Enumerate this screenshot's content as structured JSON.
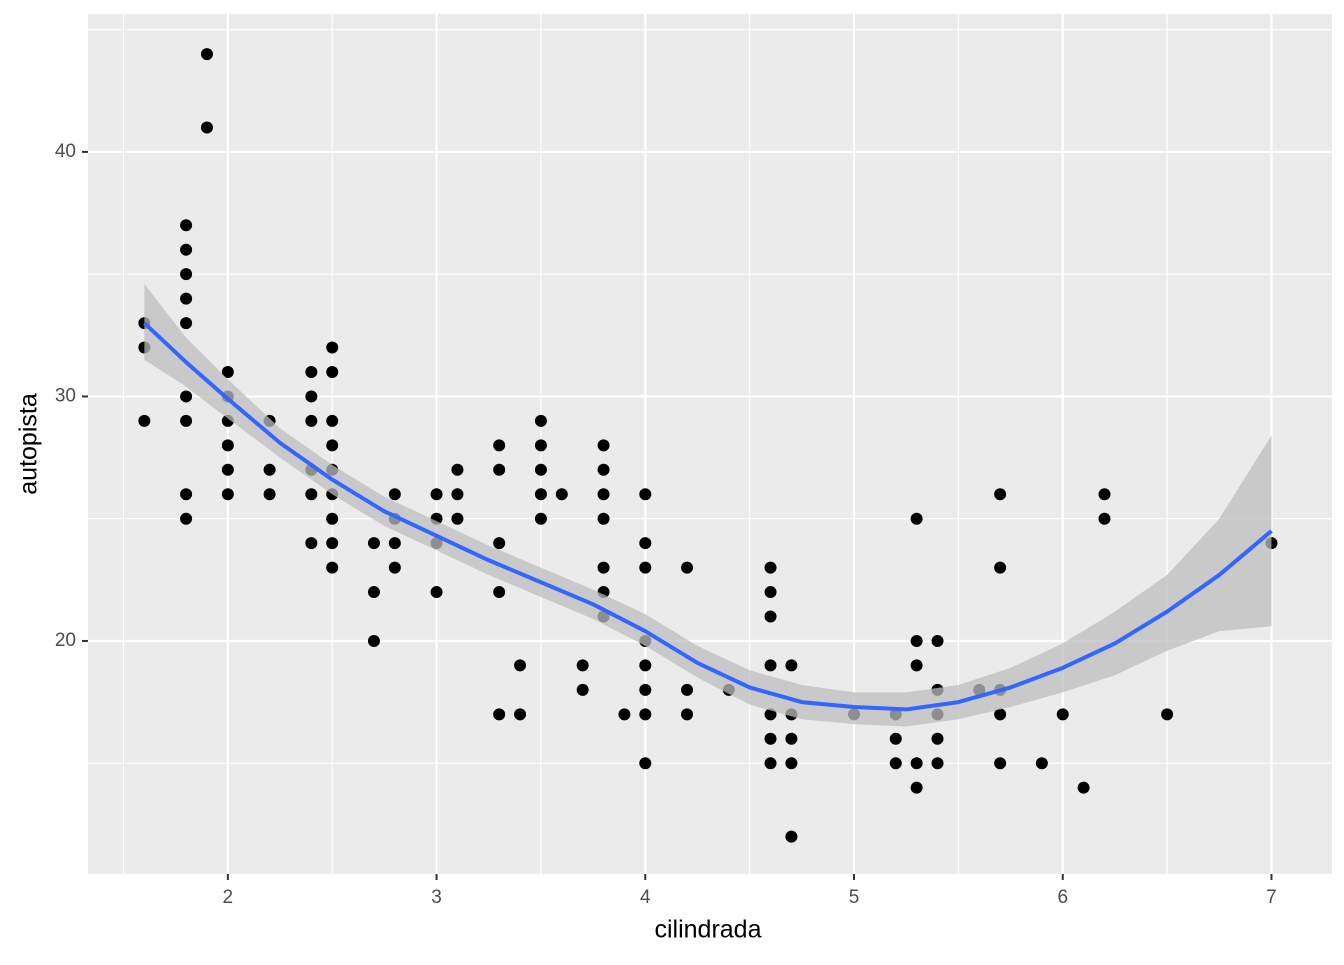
{
  "chart_data": {
    "type": "scatter",
    "x_label": "cilindrada",
    "y_label": "autopista",
    "x": [
      1.6,
      1.6,
      1.6,
      1.8,
      1.8,
      1.8,
      1.8,
      1.8,
      1.8,
      1.8,
      1.8,
      1.8,
      1.9,
      1.9,
      2.0,
      2.0,
      2.0,
      2.0,
      2.0,
      2.0,
      2.2,
      2.2,
      2.2,
      2.4,
      2.4,
      2.4,
      2.4,
      2.4,
      2.4,
      2.5,
      2.5,
      2.5,
      2.5,
      2.5,
      2.5,
      2.5,
      2.5,
      2.5,
      2.7,
      2.7,
      2.7,
      2.8,
      2.8,
      2.8,
      2.8,
      3.0,
      3.0,
      3.0,
      3.0,
      3.1,
      3.1,
      3.1,
      3.3,
      3.3,
      3.3,
      3.3,
      3.3,
      3.4,
      3.4,
      3.5,
      3.5,
      3.5,
      3.5,
      3.5,
      3.6,
      3.7,
      3.7,
      3.8,
      3.8,
      3.8,
      3.8,
      3.8,
      3.8,
      3.8,
      3.9,
      4.0,
      4.0,
      4.0,
      4.0,
      4.0,
      4.0,
      4.0,
      4.0,
      4.2,
      4.2,
      4.2,
      4.4,
      4.6,
      4.6,
      4.6,
      4.6,
      4.6,
      4.6,
      4.6,
      4.7,
      4.7,
      4.7,
      4.7,
      4.7,
      5.0,
      5.2,
      5.2,
      5.2,
      5.3,
      5.3,
      5.3,
      5.3,
      5.3,
      5.4,
      5.4,
      5.4,
      5.4,
      5.4,
      5.6,
      5.7,
      5.7,
      5.7,
      5.7,
      5.7,
      5.9,
      6.0,
      6.1,
      6.2,
      6.2,
      6.5,
      7.0
    ],
    "values": [
      33,
      32,
      29,
      37,
      36,
      35,
      34,
      33,
      30,
      29,
      26,
      25,
      44,
      41,
      31,
      30,
      29,
      28,
      27,
      26,
      29,
      27,
      26,
      31,
      30,
      29,
      27,
      26,
      24,
      32,
      31,
      29,
      28,
      27,
      26,
      25,
      24,
      23,
      24,
      22,
      20,
      26,
      25,
      24,
      23,
      26,
      25,
      24,
      22,
      27,
      26,
      25,
      28,
      27,
      24,
      22,
      17,
      19,
      17,
      29,
      28,
      27,
      26,
      25,
      26,
      19,
      18,
      28,
      27,
      26,
      25,
      23,
      22,
      21,
      17,
      26,
      24,
      23,
      20,
      19,
      18,
      17,
      15,
      23,
      18,
      17,
      18,
      23,
      22,
      21,
      19,
      17,
      16,
      15,
      19,
      17,
      16,
      15,
      12,
      17,
      17,
      16,
      15,
      25,
      20,
      19,
      15,
      14,
      20,
      18,
      17,
      16,
      15,
      18,
      26,
      23,
      18,
      17,
      15,
      15,
      17,
      14,
      26,
      25,
      17,
      24
    ],
    "color": "#000000",
    "smooth": {
      "color": "#3366ff",
      "band_color": "#bebebe",
      "x": [
        1.6,
        1.8,
        2.0,
        2.25,
        2.5,
        2.75,
        3.0,
        3.25,
        3.5,
        3.75,
        4.0,
        4.25,
        4.5,
        4.75,
        5.0,
        5.25,
        5.5,
        5.75,
        6.0,
        6.25,
        6.5,
        6.75,
        7.0
      ],
      "y": [
        33.0,
        31.4,
        29.9,
        28.1,
        26.6,
        25.3,
        24.3,
        23.3,
        22.4,
        21.5,
        20.4,
        19.1,
        18.1,
        17.5,
        17.3,
        17.2,
        17.5,
        18.1,
        18.9,
        19.9,
        21.2,
        22.7,
        24.5
      ],
      "lower": [
        31.5,
        30.4,
        29.1,
        27.5,
        26.0,
        24.7,
        23.7,
        22.7,
        21.8,
        20.9,
        19.8,
        18.5,
        17.4,
        16.8,
        16.6,
        16.5,
        16.8,
        17.3,
        17.9,
        18.6,
        19.6,
        20.4,
        20.6
      ],
      "upper": [
        34.6,
        32.4,
        30.7,
        28.7,
        27.2,
        25.9,
        24.9,
        23.9,
        23.0,
        22.1,
        21.1,
        19.8,
        18.8,
        18.2,
        17.9,
        17.9,
        18.2,
        18.9,
        19.9,
        21.2,
        22.7,
        25.0,
        28.4
      ]
    },
    "xlim": [
      1.33,
      7.29
    ],
    "ylim": [
      10.47,
      45.64
    ],
    "xticks": [
      2,
      3,
      4,
      5,
      6,
      7
    ],
    "yticks": [
      20,
      30,
      40
    ],
    "x_minor_ticks": [
      1.5,
      2.5,
      3.5,
      4.5,
      5.5,
      6.5
    ],
    "y_minor_ticks": [
      15,
      25,
      35,
      45
    ],
    "grid": true
  }
}
